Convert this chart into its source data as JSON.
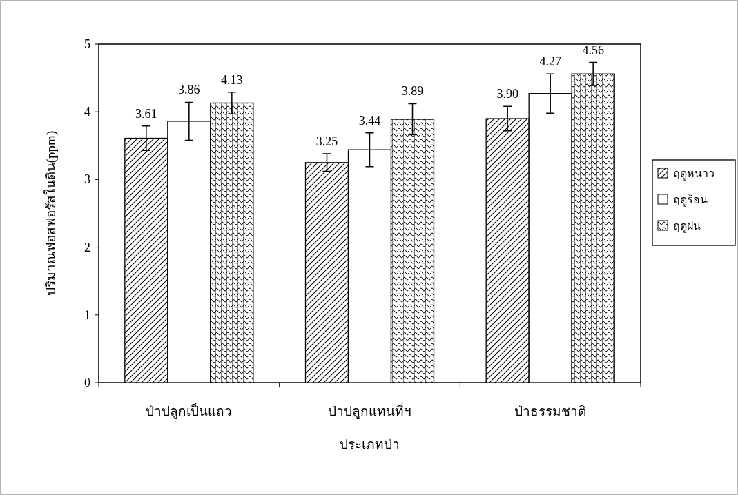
{
  "chart_data": {
    "type": "bar",
    "xlabel": "ประเภทป่า",
    "ylabel": "ปริมาณฟอสฟอรัสในดิน(ppm)",
    "categories": [
      "ป่าปลูกเป็นแถว",
      "ป่าปลูกแทนที่ฯ",
      "ป่าธรรมชาติ"
    ],
    "series": [
      {
        "name": "ฤดูหนาว",
        "color": "#000000",
        "values": [
          3.61,
          3.25,
          3.9
        ],
        "errors": [
          0.18,
          0.13,
          0.18
        ],
        "value_labels": [
          "3.61",
          "3.25",
          "3.90"
        ]
      },
      {
        "name": "ฤดูร้อน",
        "color": "#000000",
        "values": [
          3.86,
          3.44,
          4.27
        ],
        "errors": [
          0.28,
          0.25,
          0.29
        ],
        "value_labels": [
          "3.86",
          "3.44",
          "4.27"
        ]
      },
      {
        "name": "ฤดูฝน",
        "color": "#000000",
        "values": [
          4.13,
          3.89,
          4.56
        ],
        "errors": [
          0.16,
          0.23,
          0.17
        ],
        "value_labels": [
          "4.13",
          "3.89",
          "4.56"
        ]
      }
    ],
    "ylim": [
      0,
      5
    ],
    "yticks": [
      0,
      1,
      2,
      3,
      4,
      5
    ],
    "legend": "right"
  }
}
